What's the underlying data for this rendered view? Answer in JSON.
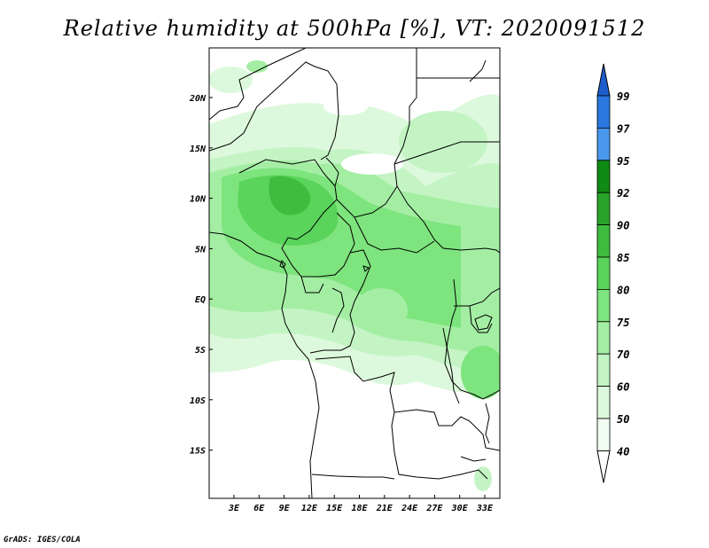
{
  "title": "Relative humidity at 500hPa [%], VT: 2020091512",
  "credit": "GrADS: IGES/COLA",
  "map": {
    "lat_labels": [
      "20N",
      "15N",
      "10N",
      "5N",
      "EQ",
      "5S",
      "10S",
      "15S"
    ],
    "lon_labels": [
      "3E",
      "6E",
      "9E",
      "12E",
      "15E",
      "18E",
      "21E",
      "24E",
      "27E",
      "30E",
      "33E"
    ],
    "lon_range": [
      0,
      34
    ],
    "lat_range": [
      -20,
      25
    ]
  },
  "colorbar": {
    "levels": [
      "99",
      "97",
      "95",
      "92",
      "90",
      "85",
      "80",
      "75",
      "70",
      "60",
      "50",
      "40"
    ],
    "colors": [
      "#1c5fcc",
      "#2a78e0",
      "#4a98ee",
      "#0f8a12",
      "#2aa32a",
      "#3ebc3e",
      "#5ad45a",
      "#7ee47e",
      "#a4eea4",
      "#c4f4c4",
      "#ddf9dd",
      "#f2fdf2"
    ],
    "bottom_color": "#ffffff"
  }
}
